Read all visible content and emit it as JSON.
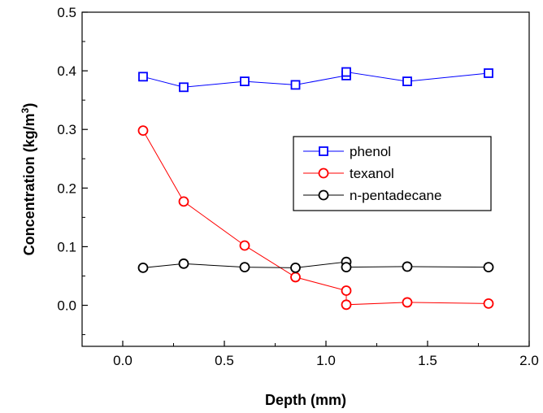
{
  "chart_data": {
    "type": "line",
    "xlabel": "Depth (mm)",
    "ylabel_main": "Concentration (kg/m",
    "ylabel_sup": "3",
    "ylabel_close": ")",
    "xlim": [
      -0.2,
      2.0
    ],
    "ylim": [
      -0.07,
      0.5
    ],
    "xticks": [
      0.0,
      0.5,
      1.0,
      1.5,
      2.0
    ],
    "xtick_labels": [
      "0.0",
      "0.5",
      "1.0",
      "1.5",
      "2.0"
    ],
    "yticks": [
      0.0,
      0.1,
      0.2,
      0.3,
      0.4,
      0.5
    ],
    "ytick_labels": [
      "0.0",
      "0.1",
      "0.2",
      "0.3",
      "0.4",
      "0.5"
    ],
    "grid": false,
    "legend_position": "right",
    "series": [
      {
        "name": "phenol",
        "color": "#0000ff",
        "marker": "square",
        "x": [
          0.1,
          0.3,
          0.6,
          0.85,
          1.1,
          1.1,
          1.4,
          1.8
        ],
        "y": [
          0.39,
          0.372,
          0.382,
          0.376,
          0.392,
          0.398,
          0.382,
          0.396
        ]
      },
      {
        "name": "texanol",
        "color": "#ff0000",
        "marker": "circle",
        "x": [
          0.1,
          0.3,
          0.6,
          0.85,
          1.1,
          1.1,
          1.4,
          1.8
        ],
        "y": [
          0.298,
          0.177,
          0.102,
          0.048,
          0.025,
          0.001,
          0.005,
          0.003
        ]
      },
      {
        "name": "n-pentadecane",
        "color": "#000000",
        "marker": "circle",
        "x": [
          0.1,
          0.3,
          0.6,
          0.85,
          1.1,
          1.1,
          1.4,
          1.8
        ],
        "y": [
          0.064,
          0.071,
          0.065,
          0.064,
          0.074,
          0.065,
          0.066,
          0.065
        ]
      }
    ]
  }
}
